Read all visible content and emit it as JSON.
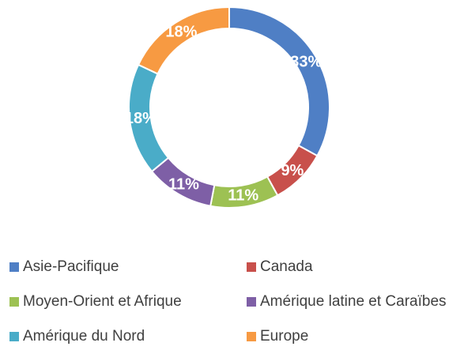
{
  "chart_data": {
    "type": "pie",
    "donut": true,
    "categories": [
      "Asie-Pacifique",
      "Canada",
      "Moyen-Orient et Afrique",
      "Amérique latine et Caraïbes",
      "Amérique du Nord",
      "Europe"
    ],
    "values": [
      33,
      9,
      11,
      11,
      18,
      18
    ],
    "value_labels": [
      "33%",
      "9%",
      "11%",
      "11%",
      "18%",
      "18%"
    ],
    "colors": [
      "#4F7FC5",
      "#C8504B",
      "#9DC153",
      "#7E5FA6",
      "#4AACC8",
      "#F79A42"
    ],
    "title": "",
    "legend_position": "bottom"
  }
}
